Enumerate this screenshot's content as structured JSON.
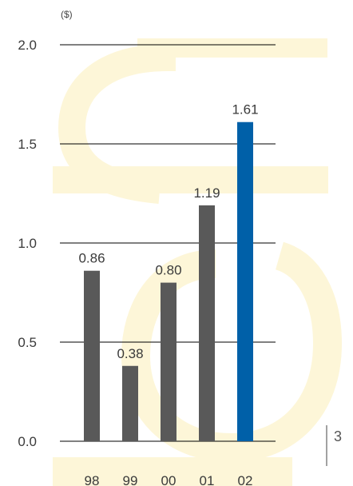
{
  "chart_data": {
    "type": "bar",
    "unit_label": "($)",
    "title": "",
    "xlabel": "",
    "ylabel": "",
    "categories": [
      "98",
      "99",
      "00",
      "01",
      "02"
    ],
    "values": [
      0.86,
      0.38,
      0.8,
      1.19,
      1.61
    ],
    "value_labels": [
      "0.86",
      "0.38",
      "0.80",
      "1.19",
      "1.61"
    ],
    "yticks": [
      "0.0",
      "0.5",
      "1.0",
      "1.5",
      "2.0"
    ],
    "ylim": [
      0,
      2.0
    ],
    "grid": true,
    "colors": {
      "bar": "#595959",
      "highlight": "#0060a8",
      "watermark": "#fdf6d8",
      "grid": "#000000"
    },
    "highlight_index": 4
  },
  "page_number": "3",
  "watermark_icon": "stylized-g-watermark-icon"
}
